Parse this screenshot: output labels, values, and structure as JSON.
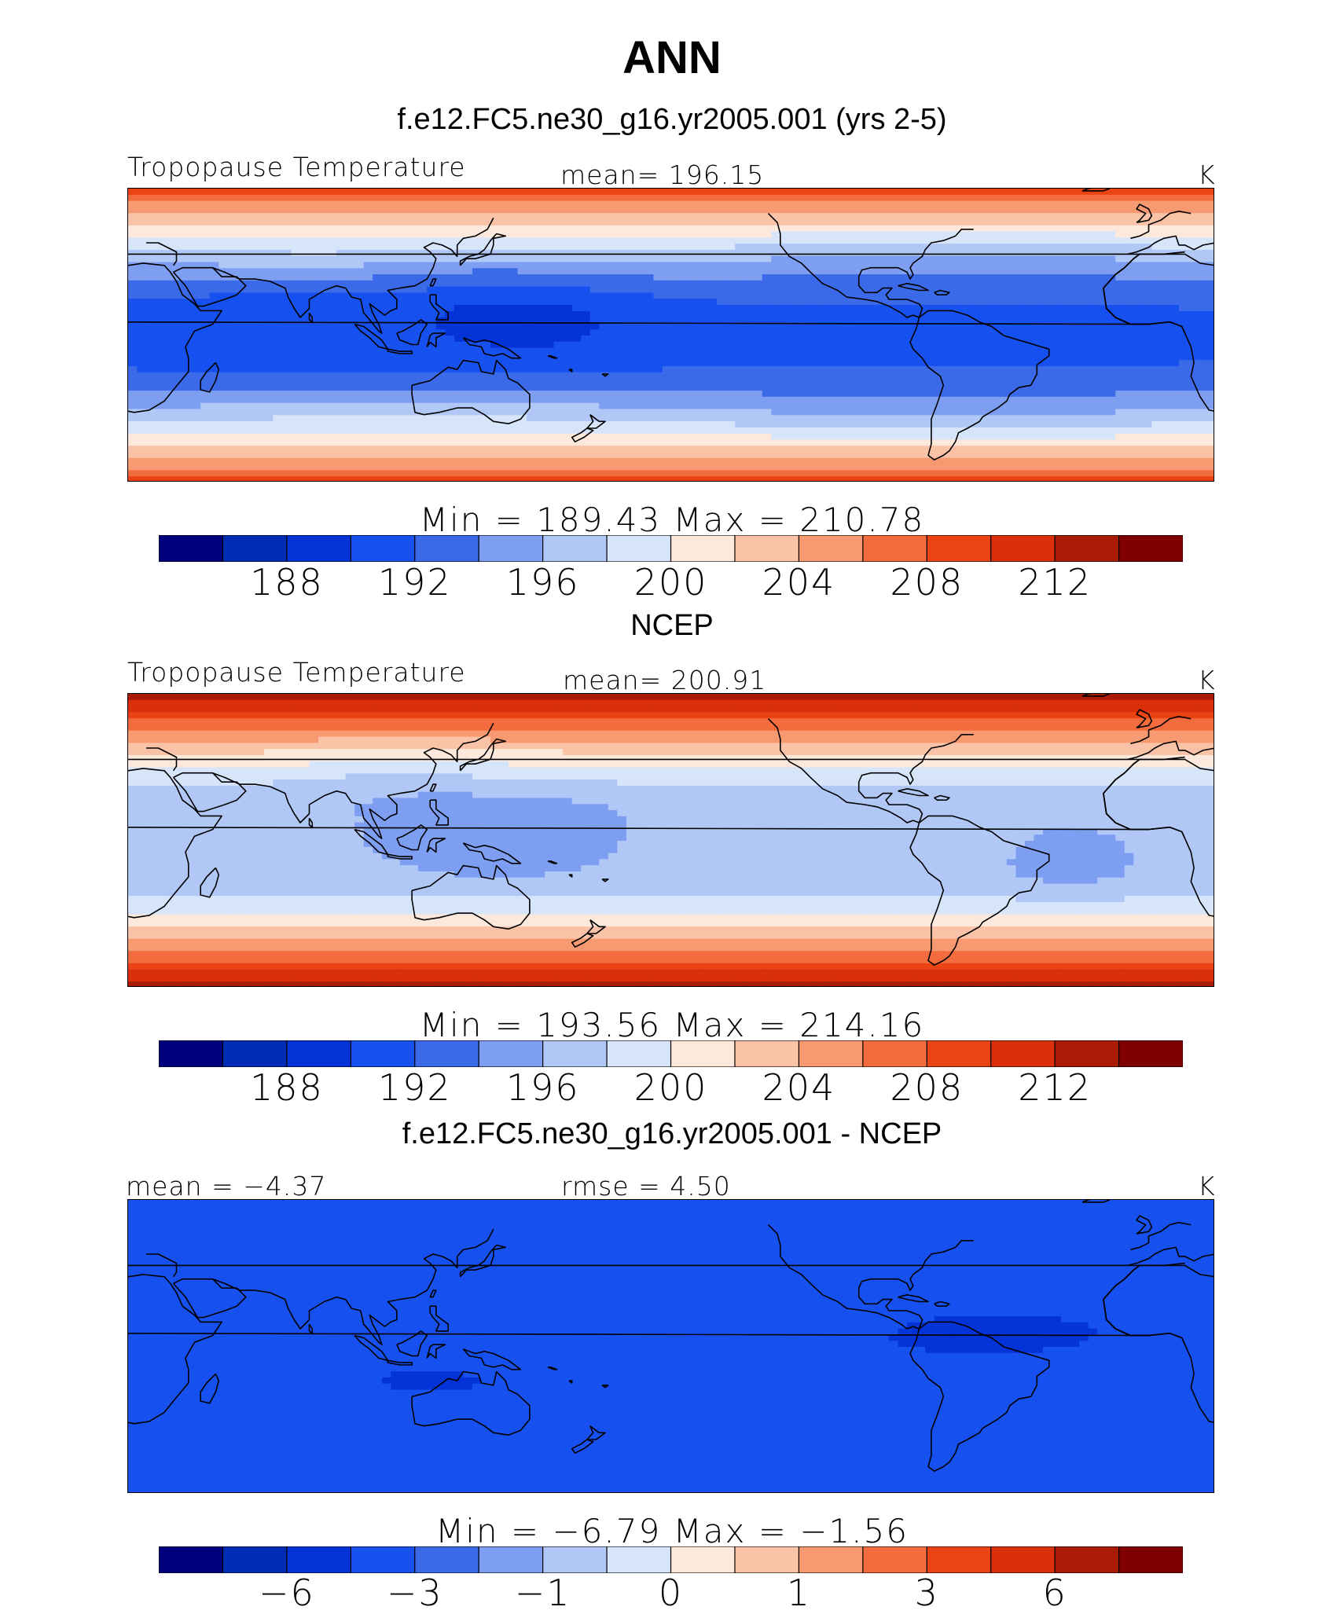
{
  "title": "ANN",
  "palette": [
    "#00007f",
    "#002bb4",
    "#0433d8",
    "#1651f0",
    "#3b6ae9",
    "#7e9ef2",
    "#b1c8f7",
    "#d7e5fb",
    "#fde9dc",
    "#fac2a6",
    "#f79a72",
    "#f26c3e",
    "#ea4314",
    "#d9300b",
    "#aa1b05",
    "#7f0000"
  ],
  "chart_data": [
    {
      "type": "heatmap",
      "title": "f.e12.FC5.ne30_g16.yr2005.001 (yrs 2-5)",
      "variable": "Tropopause Temperature",
      "mean_label": "mean= 196.15",
      "units": "K",
      "min_max_label": "Min = 189.43 Max = 210.78",
      "min": 189.43,
      "max": 210.78,
      "mean": 196.15,
      "colorbar_ticks": [
        "188",
        "192",
        "196",
        "200",
        "204",
        "208",
        "212"
      ]
    },
    {
      "type": "heatmap",
      "title": "NCEP",
      "variable": "Tropopause Temperature",
      "mean_label": "mean= 200.91",
      "units": "K",
      "min_max_label": "Min = 193.56 Max = 214.16",
      "min": 193.56,
      "max": 214.16,
      "mean": 200.91,
      "colorbar_ticks": [
        "188",
        "192",
        "196",
        "200",
        "204",
        "208",
        "212"
      ]
    },
    {
      "type": "heatmap",
      "title": "f.e12.FC5.ne30_g16.yr2005.001 - NCEP",
      "mean_label": "mean = −4.37",
      "rmse_label": "rmse = 4.50",
      "units": "K",
      "min_max_label": "Min = −6.79 Max = −1.56",
      "min": -6.79,
      "max": -1.56,
      "mean": -4.37,
      "rmse": 4.5,
      "colorbar_ticks": [
        "−6",
        "−3",
        "−1",
        "0",
        "1",
        "3",
        "6"
      ]
    }
  ]
}
